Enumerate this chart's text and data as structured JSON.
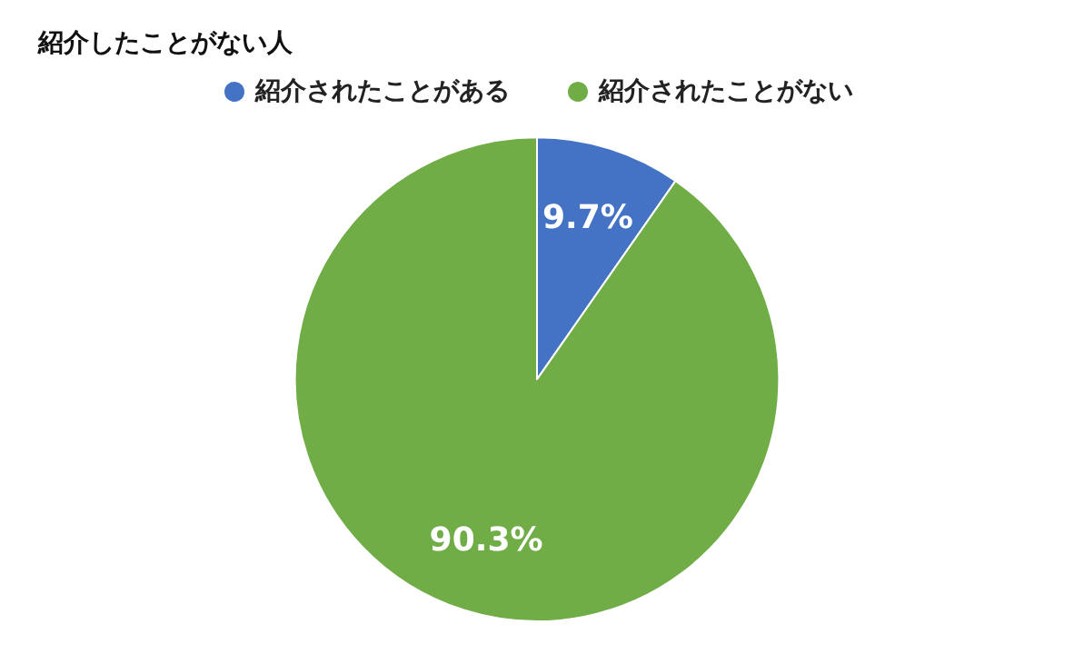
{
  "chart_data": {
    "type": "pie",
    "title": "紹介したことがない人",
    "categories": [
      "紹介されたことがある",
      "紹介されたことがない"
    ],
    "values": [
      9.7,
      90.3
    ],
    "colors": [
      "#4472c4",
      "#70ad47"
    ],
    "value_labels": [
      "9.7%",
      "90.3%"
    ],
    "legend": "top"
  }
}
